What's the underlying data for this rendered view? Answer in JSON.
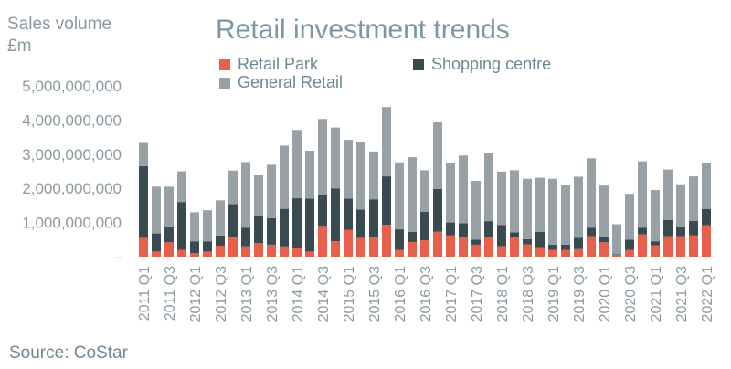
{
  "y_axis_title_line1": "Sales volume",
  "y_axis_title_line2": "£m",
  "source": "Source: CoStar",
  "colors": {
    "retail_park": "#e8604c",
    "shopping_centre": "#3a4a51",
    "general_retail": "#97a1a6",
    "tick_text": "#8a9aa0",
    "title": "#7a97a3"
  },
  "chart_data": {
    "type": "bar",
    "stacked": true,
    "title": "Retail investment trends",
    "ylabel": "Sales volume £m",
    "ylim": [
      0,
      5000000000
    ],
    "yticks": [
      "-",
      "1,000,000,000",
      "2,000,000,000",
      "3,000,000,000",
      "4,000,000,000",
      "5,000,000,000"
    ],
    "legend_position": "top",
    "categories": [
      "2011 Q1",
      "2011 Q2",
      "2011 Q3",
      "2011 Q4",
      "2012 Q1",
      "2012 Q2",
      "2012 Q3",
      "2012 Q4",
      "2013 Q1",
      "2013 Q2",
      "2013 Q3",
      "2013 Q4",
      "2014 Q1",
      "2014 Q2",
      "2014 Q3",
      "2014 Q4",
      "2015 Q1",
      "2015 Q2",
      "2015 Q3",
      "2015 Q4",
      "2016 Q1",
      "2016 Q2",
      "2016 Q3",
      "2016 Q4",
      "2017 Q1",
      "2017 Q2",
      "2017 Q3",
      "2017 Q4",
      "2018 Q1",
      "2018 Q2",
      "2018 Q3",
      "2018 Q4",
      "2019 Q1",
      "2019 Q2",
      "2019 Q3",
      "2019 Q4",
      "2020 Q1",
      "2020 Q2",
      "2020 Q3",
      "2020 Q4",
      "2021 Q1",
      "2021 Q2",
      "2021 Q3",
      "2021 Q4",
      "2022 Q1"
    ],
    "tick_labels": [
      "2011 Q1",
      "2011 Q3",
      "2012 Q1",
      "2012 Q3",
      "2013 Q1",
      "2013 Q3",
      "2014 Q1",
      "2014 Q3",
      "2015 Q1",
      "2015 Q3",
      "2016 Q1",
      "2016 Q3",
      "2017 Q1",
      "2017 Q3",
      "2018 Q1",
      "2018 Q3",
      "2019 Q1",
      "2019 Q3",
      "2020 Q1",
      "2020 Q3",
      "2021 Q1",
      "2021 Q3",
      "2022 Q1"
    ],
    "series": [
      {
        "name": "Retail Park",
        "values": [
          550000000,
          150000000,
          420000000,
          200000000,
          100000000,
          150000000,
          320000000,
          560000000,
          300000000,
          400000000,
          350000000,
          300000000,
          260000000,
          150000000,
          900000000,
          450000000,
          780000000,
          550000000,
          580000000,
          930000000,
          200000000,
          430000000,
          480000000,
          730000000,
          620000000,
          580000000,
          350000000,
          560000000,
          310000000,
          580000000,
          360000000,
          280000000,
          200000000,
          200000000,
          220000000,
          600000000,
          420000000,
          50000000,
          200000000,
          650000000,
          330000000,
          600000000,
          600000000,
          620000000,
          920000000
        ]
      },
      {
        "name": "Shopping centre",
        "values": [
          2100000000,
          530000000,
          450000000,
          1400000000,
          350000000,
          300000000,
          300000000,
          980000000,
          550000000,
          800000000,
          780000000,
          1100000000,
          1450000000,
          1550000000,
          900000000,
          1550000000,
          920000000,
          830000000,
          1100000000,
          1420000000,
          600000000,
          300000000,
          830000000,
          1250000000,
          380000000,
          400000000,
          150000000,
          480000000,
          620000000,
          130000000,
          150000000,
          450000000,
          150000000,
          150000000,
          330000000,
          250000000,
          150000000,
          20000000,
          300000000,
          200000000,
          120000000,
          470000000,
          270000000,
          430000000,
          470000000
        ]
      },
      {
        "name": "General Retail",
        "values": [
          680000000,
          1370000000,
          1180000000,
          900000000,
          850000000,
          910000000,
          1030000000,
          980000000,
          1920000000,
          1180000000,
          1560000000,
          1850000000,
          2000000000,
          1400000000,
          2230000000,
          1780000000,
          1720000000,
          1980000000,
          1400000000,
          2030000000,
          1960000000,
          2180000000,
          1220000000,
          1950000000,
          1740000000,
          1980000000,
          1720000000,
          1990000000,
          1560000000,
          1820000000,
          1770000000,
          1580000000,
          1930000000,
          1750000000,
          1790000000,
          2030000000,
          1510000000,
          880000000,
          1340000000,
          1940000000,
          1500000000,
          1480000000,
          1250000000,
          1300000000,
          1340000000
        ]
      }
    ]
  }
}
